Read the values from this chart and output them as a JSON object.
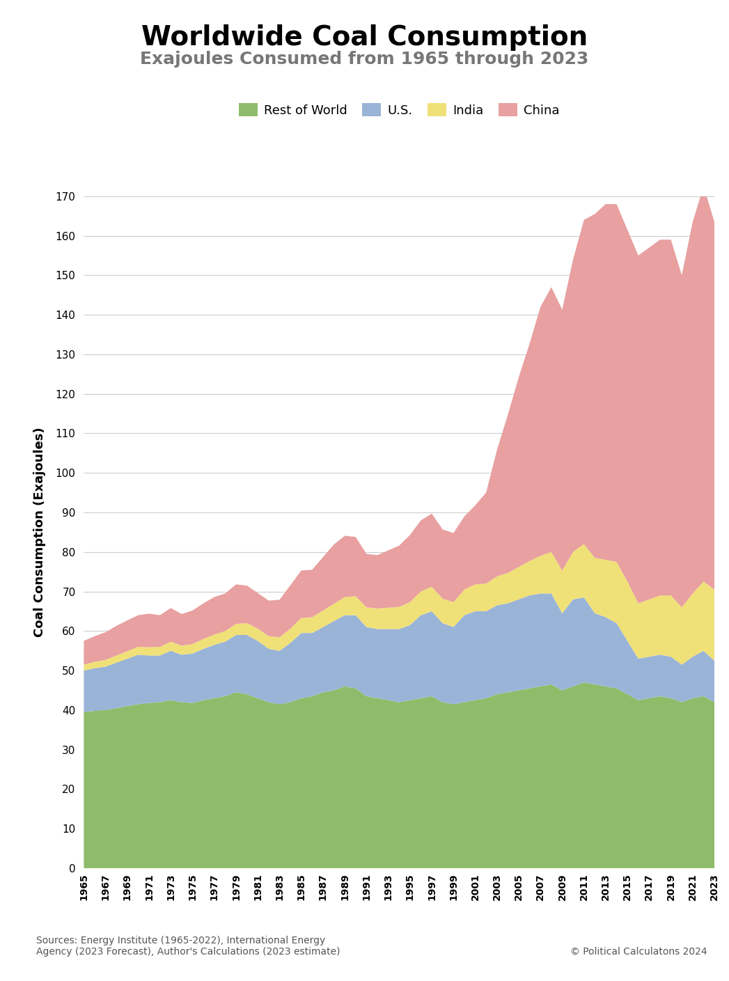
{
  "title": "Worldwide Coal Consumption",
  "subtitle": "Exajoules Consumed from 1965 through 2023",
  "ylabel": "Coal Consumption (Exajoules)",
  "footer_left": "Sources: Energy Institute (1965-2022), International Energy\nAgency (2023 Forecast), Author's Calculations (2023 estimate)",
  "footer_right": "© Political Calculatons 2024",
  "years": [
    1965,
    1966,
    1967,
    1968,
    1969,
    1970,
    1971,
    1972,
    1973,
    1974,
    1975,
    1976,
    1977,
    1978,
    1979,
    1980,
    1981,
    1982,
    1983,
    1984,
    1985,
    1986,
    1987,
    1988,
    1989,
    1990,
    1991,
    1992,
    1993,
    1994,
    1995,
    1996,
    1997,
    1998,
    1999,
    2000,
    2001,
    2002,
    2003,
    2004,
    2005,
    2006,
    2007,
    2008,
    2009,
    2010,
    2011,
    2012,
    2013,
    2014,
    2015,
    2016,
    2017,
    2018,
    2019,
    2020,
    2021,
    2022,
    2023
  ],
  "rest_of_world": [
    39.5,
    39.8,
    40.0,
    40.5,
    41.0,
    41.5,
    41.8,
    42.0,
    42.5,
    42.0,
    41.8,
    42.5,
    43.0,
    43.5,
    44.5,
    44.0,
    43.0,
    42.0,
    41.5,
    42.0,
    43.0,
    43.5,
    44.5,
    45.0,
    46.0,
    45.5,
    43.5,
    43.0,
    42.5,
    42.0,
    42.5,
    43.0,
    43.5,
    42.0,
    41.5,
    42.0,
    42.5,
    43.0,
    44.0,
    44.5,
    45.0,
    45.5,
    46.0,
    46.5,
    45.0,
    46.0,
    47.0,
    46.5,
    46.0,
    45.5,
    44.0,
    42.5,
    43.0,
    43.5,
    43.0,
    42.0,
    43.0,
    43.5,
    42.0
  ],
  "us": [
    10.5,
    10.8,
    11.0,
    11.5,
    12.0,
    12.5,
    12.0,
    11.8,
    12.5,
    12.0,
    12.5,
    13.0,
    13.5,
    13.8,
    14.5,
    15.0,
    14.5,
    13.5,
    13.5,
    15.0,
    16.5,
    16.0,
    16.5,
    17.5,
    18.0,
    18.5,
    17.5,
    17.5,
    18.0,
    18.5,
    19.0,
    21.0,
    21.5,
    20.0,
    19.5,
    22.0,
    22.5,
    22.0,
    22.5,
    22.5,
    23.0,
    23.5,
    23.5,
    23.0,
    19.5,
    22.0,
    21.5,
    18.0,
    17.5,
    16.5,
    13.5,
    10.5,
    10.5,
    10.5,
    10.5,
    9.5,
    10.5,
    11.5,
    10.5
  ],
  "india": [
    1.5,
    1.6,
    1.7,
    1.8,
    1.9,
    2.0,
    2.1,
    2.2,
    2.3,
    2.3,
    2.4,
    2.5,
    2.6,
    2.7,
    2.8,
    3.0,
    3.1,
    3.2,
    3.4,
    3.6,
    3.8,
    4.0,
    4.2,
    4.4,
    4.6,
    4.8,
    5.0,
    5.2,
    5.4,
    5.6,
    5.8,
    6.0,
    6.2,
    6.2,
    6.3,
    6.5,
    6.8,
    7.0,
    7.3,
    7.7,
    8.2,
    8.7,
    9.5,
    10.5,
    10.8,
    12.0,
    13.5,
    14.0,
    14.5,
    15.5,
    15.0,
    14.0,
    14.5,
    15.0,
    15.5,
    14.5,
    16.0,
    17.5,
    18.0
  ],
  "china": [
    6.0,
    6.5,
    7.0,
    7.5,
    7.8,
    8.0,
    8.5,
    8.0,
    8.5,
    8.0,
    8.5,
    9.0,
    9.5,
    9.5,
    10.0,
    9.5,
    9.0,
    9.0,
    9.5,
    11.0,
    12.0,
    12.0,
    13.5,
    15.0,
    15.5,
    15.0,
    13.5,
    13.5,
    14.5,
    15.5,
    17.0,
    18.0,
    18.5,
    17.5,
    17.5,
    18.5,
    20.0,
    23.0,
    32.0,
    40.0,
    48.0,
    55.0,
    63.0,
    67.0,
    66.0,
    74.0,
    82.0,
    87.0,
    90.0,
    90.5,
    89.0,
    88.0,
    89.0,
    90.0,
    90.0,
    84.0,
    94.0,
    100.0,
    93.0
  ],
  "colors": {
    "rest_of_world": "#8fbc6a",
    "us": "#9ab4d8",
    "india": "#f0e078",
    "china": "#e8a0a0"
  },
  "ylim": [
    0,
    170
  ],
  "yticks": [
    0,
    10,
    20,
    30,
    40,
    50,
    60,
    70,
    80,
    90,
    100,
    110,
    120,
    130,
    140,
    150,
    160,
    170
  ],
  "background_color": "#ffffff",
  "grid_color": "#cccccc",
  "title_fontsize": 28,
  "subtitle_fontsize": 18,
  "subtitle_color": "#777777",
  "tick_fontsize": 11,
  "xtick_fontsize": 10
}
